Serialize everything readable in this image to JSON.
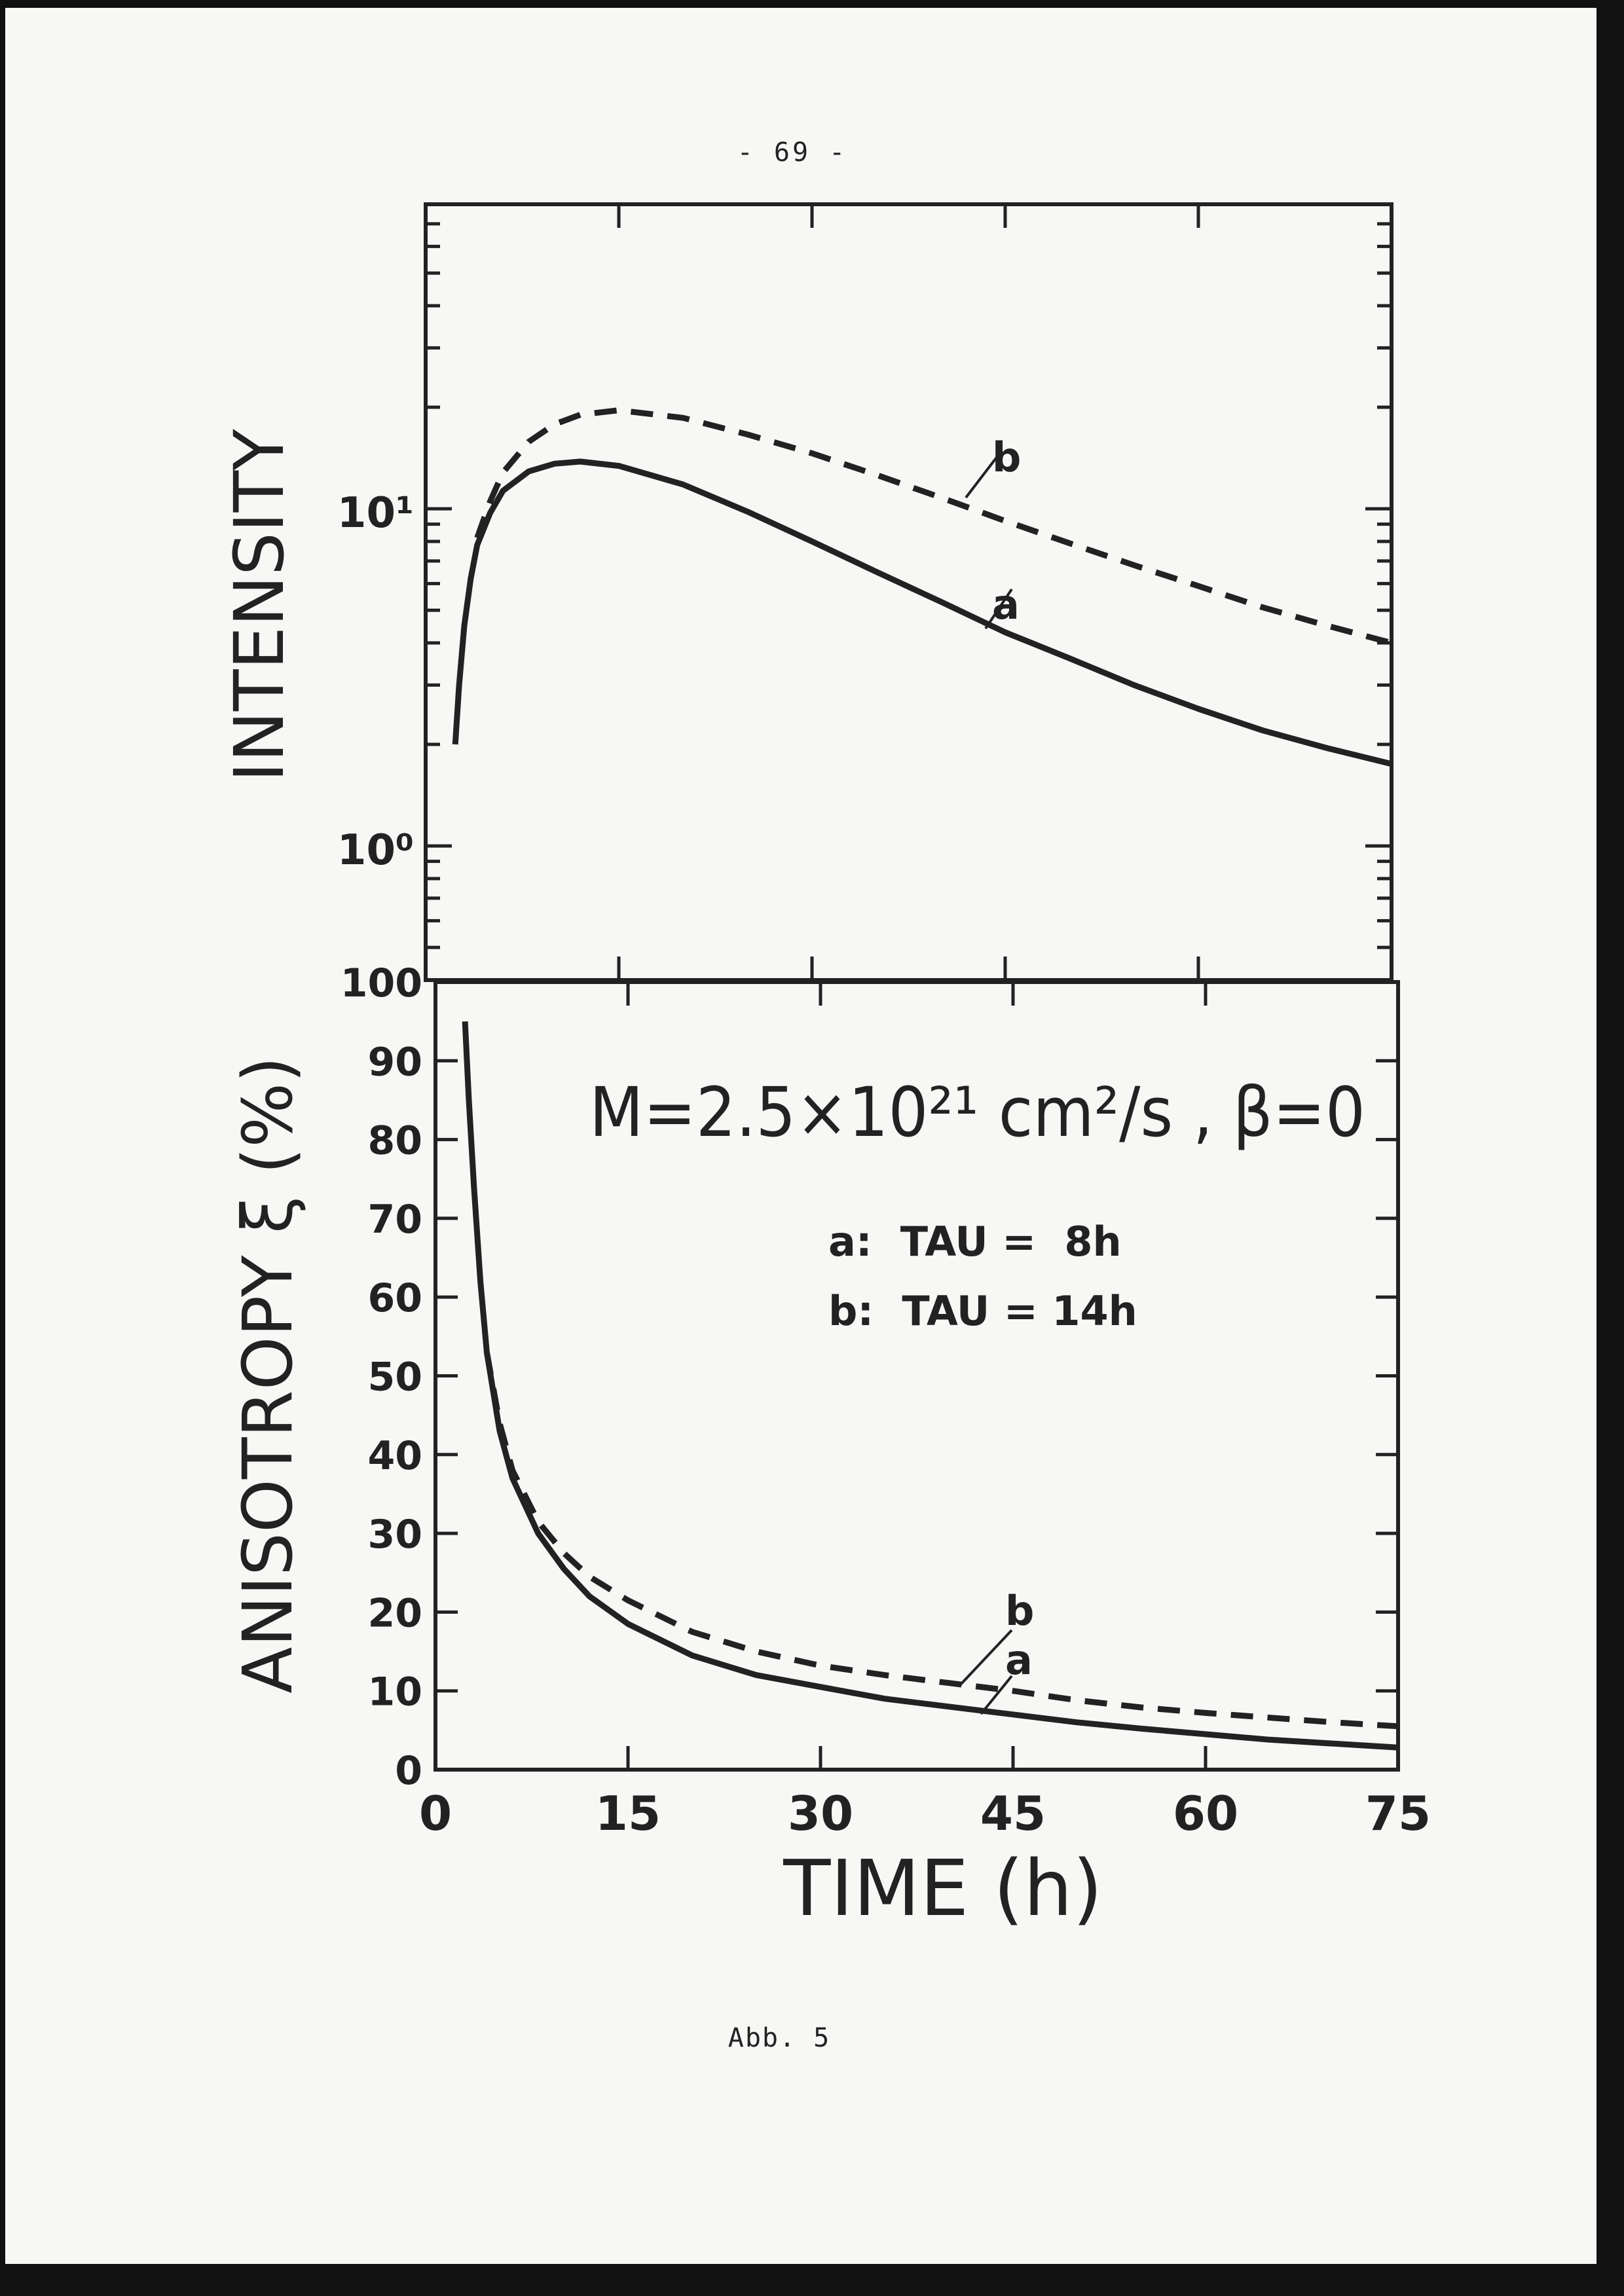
{
  "page": {
    "page_number": "- 69 -",
    "caption": "Abb. 5"
  },
  "colors": {
    "ink": "#222222",
    "paper": "#f7f7f5",
    "scan_border": "#111111"
  },
  "annotation": {
    "parameters": "M=2.5×10²¹ cm²/s , β=0",
    "legend": [
      "a:  TAU =  8h",
      "b:  TAU = 14h"
    ]
  },
  "chart_data": [
    {
      "type": "line",
      "panel": "top",
      "ylabel": "INTENSITY",
      "yscale": "log",
      "ylim": [
        0.4,
        80
      ],
      "xlim": [
        0,
        75
      ],
      "y_tick_labels": [
        {
          "value": 1,
          "label": "10⁰"
        },
        {
          "value": 10,
          "label": "10¹"
        }
      ],
      "series": [
        {
          "name": "a",
          "style": "solid",
          "points": [
            [
              2.3,
              2.0
            ],
            [
              2.6,
              3.0
            ],
            [
              3,
              4.5
            ],
            [
              3.5,
              6.2
            ],
            [
              4,
              7.8
            ],
            [
              5,
              9.7
            ],
            [
              6,
              11.3
            ],
            [
              8,
              12.9
            ],
            [
              10,
              13.6
            ],
            [
              12,
              13.8
            ],
            [
              15,
              13.4
            ],
            [
              20,
              11.8
            ],
            [
              25,
              9.8
            ],
            [
              30,
              8.0
            ],
            [
              35,
              6.5
            ],
            [
              40,
              5.3
            ],
            [
              45,
              4.3
            ],
            [
              50,
              3.6
            ],
            [
              55,
              3.0
            ],
            [
              60,
              2.55
            ],
            [
              65,
              2.2
            ],
            [
              70,
              1.95
            ],
            [
              75,
              1.75
            ]
          ]
        },
        {
          "name": "b",
          "style": "dashed",
          "points": [
            [
              4,
              8.2
            ],
            [
              5,
              10.5
            ],
            [
              6,
              12.8
            ],
            [
              8,
              15.8
            ],
            [
              10,
              17.8
            ],
            [
              12,
              19.0
            ],
            [
              15,
              19.6
            ],
            [
              20,
              18.6
            ],
            [
              25,
              16.6
            ],
            [
              30,
              14.6
            ],
            [
              35,
              12.6
            ],
            [
              40,
              10.8
            ],
            [
              45,
              9.2
            ],
            [
              50,
              7.9
            ],
            [
              55,
              6.8
            ],
            [
              60,
              5.9
            ],
            [
              65,
              5.1
            ],
            [
              70,
              4.5
            ],
            [
              75,
              4.0
            ]
          ]
        }
      ]
    },
    {
      "type": "line",
      "panel": "bottom",
      "xlabel": "TIME (h)",
      "ylabel": "ANISOTROPY ξ (%)",
      "xlim": [
        0,
        75
      ],
      "ylim": [
        0,
        100
      ],
      "x_ticks": [
        0,
        15,
        30,
        45,
        60,
        75
      ],
      "y_ticks": [
        0,
        10,
        20,
        30,
        40,
        50,
        60,
        70,
        80,
        90,
        100
      ],
      "series": [
        {
          "name": "a",
          "style": "solid",
          "points": [
            [
              2.3,
              95
            ],
            [
              2.6,
              85
            ],
            [
              3,
              74
            ],
            [
              3.5,
              62
            ],
            [
              4,
              53
            ],
            [
              5,
              43
            ],
            [
              6,
              37
            ],
            [
              8,
              30
            ],
            [
              10,
              25.5
            ],
            [
              12,
              22
            ],
            [
              15,
              18.5
            ],
            [
              20,
              14.5
            ],
            [
              25,
              12
            ],
            [
              30,
              10.5
            ],
            [
              35,
              9
            ],
            [
              40,
              8
            ],
            [
              45,
              7
            ],
            [
              50,
              6
            ],
            [
              55,
              5.2
            ],
            [
              60,
              4.5
            ],
            [
              65,
              3.8
            ],
            [
              70,
              3.3
            ],
            [
              75,
              2.8
            ]
          ]
        },
        {
          "name": "b",
          "style": "dashed",
          "points": [
            [
              4,
              53
            ],
            [
              5,
              44
            ],
            [
              6,
              38
            ],
            [
              8,
              31.5
            ],
            [
              10,
              27.5
            ],
            [
              12,
              24.5
            ],
            [
              15,
              21.5
            ],
            [
              20,
              17.5
            ],
            [
              25,
              15
            ],
            [
              30,
              13.2
            ],
            [
              35,
              12
            ],
            [
              40,
              11
            ],
            [
              45,
              10
            ],
            [
              50,
              8.8
            ],
            [
              55,
              7.9
            ],
            [
              60,
              7.2
            ],
            [
              65,
              6.6
            ],
            [
              70,
              6
            ],
            [
              75,
              5.5
            ]
          ]
        }
      ],
      "curve_labels": [
        "b",
        "a"
      ]
    }
  ]
}
